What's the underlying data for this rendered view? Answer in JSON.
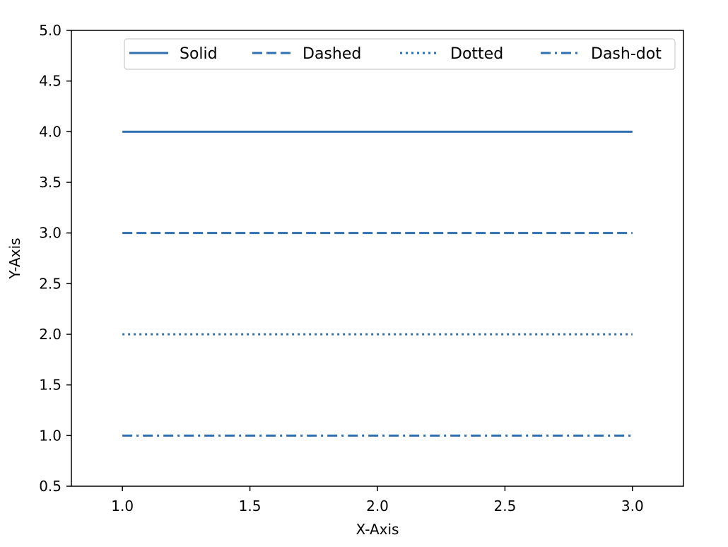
{
  "chart_data": {
    "type": "line",
    "title": "",
    "xlabel": "X-Axis",
    "ylabel": "Y-Axis",
    "xlim": [
      0.8,
      3.2
    ],
    "ylim": [
      0.5,
      5.0
    ],
    "xticks": [
      1.0,
      1.5,
      2.0,
      2.5,
      3.0
    ],
    "xtick_labels": [
      "1.0",
      "1.5",
      "2.0",
      "2.5",
      "3.0"
    ],
    "yticks": [
      0.5,
      1.0,
      1.5,
      2.0,
      2.5,
      3.0,
      3.5,
      4.0,
      4.5,
      5.0
    ],
    "ytick_labels": [
      "0.5",
      "1.0",
      "1.5",
      "2.0",
      "2.5",
      "3.0",
      "3.5",
      "4.0",
      "4.5",
      "5.0"
    ],
    "grid": false,
    "legend": {
      "placement": "top-center",
      "columns": 4
    },
    "series": [
      {
        "name": "Solid",
        "linestyle": "solid",
        "color": "#2f6fb0",
        "x": [
          1.0,
          3.0
        ],
        "y": [
          4.0,
          4.0
        ]
      },
      {
        "name": "Dashed",
        "linestyle": "dashed",
        "color": "#2f6fb0",
        "x": [
          1.0,
          3.0
        ],
        "y": [
          3.0,
          3.0
        ]
      },
      {
        "name": "Dotted",
        "linestyle": "dotted",
        "color": "#2f6fb0",
        "x": [
          1.0,
          3.0
        ],
        "y": [
          2.0,
          2.0
        ]
      },
      {
        "name": "Dash-dot",
        "linestyle": "dashdot",
        "color": "#2f6fb0",
        "x": [
          1.0,
          3.0
        ],
        "y": [
          1.0,
          1.0
        ]
      }
    ]
  }
}
